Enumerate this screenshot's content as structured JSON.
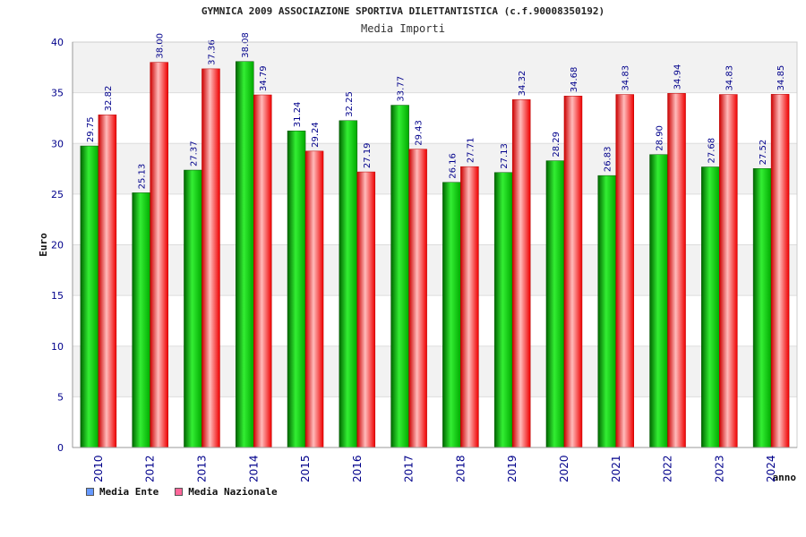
{
  "chart_data": {
    "type": "bar",
    "title": "GYMNICA 2009 ASSOCIAZIONE SPORTIVA DILETTANTISTICA (c.f.90008350192)",
    "subtitle": "Media Importi",
    "xlabel": "anno",
    "ylabel": "Euro",
    "ylim": [
      0,
      40
    ],
    "yticks": [
      0,
      5,
      10,
      15,
      20,
      25,
      30,
      35,
      40
    ],
    "grid": true,
    "legend_position": "bottom-left",
    "categories": [
      "2010",
      "2012",
      "2013",
      "2014",
      "2015",
      "2016",
      "2017",
      "2018",
      "2019",
      "2020",
      "2021",
      "2022",
      "2023",
      "2024"
    ],
    "series": [
      {
        "name": "Media Ente",
        "values": [
          29.75,
          25.13,
          27.37,
          38.08,
          31.24,
          32.25,
          33.77,
          26.16,
          27.13,
          28.29,
          26.83,
          28.9,
          27.68,
          27.52
        ],
        "labels": [
          "29.75",
          "25.13",
          "27.37",
          "38.08",
          "31.24",
          "32.25",
          "33.77",
          "26.16",
          "27.13",
          "28.29",
          "26.83",
          "28.90",
          "27.68",
          "27.52"
        ]
      },
      {
        "name": "Media Nazionale",
        "values": [
          32.82,
          38.0,
          37.36,
          34.79,
          29.24,
          27.19,
          29.43,
          27.71,
          34.32,
          34.68,
          34.83,
          34.94,
          34.83,
          34.85
        ],
        "labels": [
          "32.82",
          "38.00",
          "37.36",
          "34.79",
          "29.24",
          "27.19",
          "29.43",
          "27.71",
          "34.32",
          "34.68",
          "34.83",
          "34.94",
          "34.83",
          "34.85"
        ]
      }
    ],
    "colors": {
      "ente_dark": "#006600",
      "ente_light": "#33ee33",
      "naz_dark": "#cc0000",
      "naz_light": "#ffbbbb",
      "legend_ente": "#6699ff",
      "legend_naz": "#ff6699",
      "axis_text": "#00008b",
      "band": "#f2f2f2"
    }
  }
}
